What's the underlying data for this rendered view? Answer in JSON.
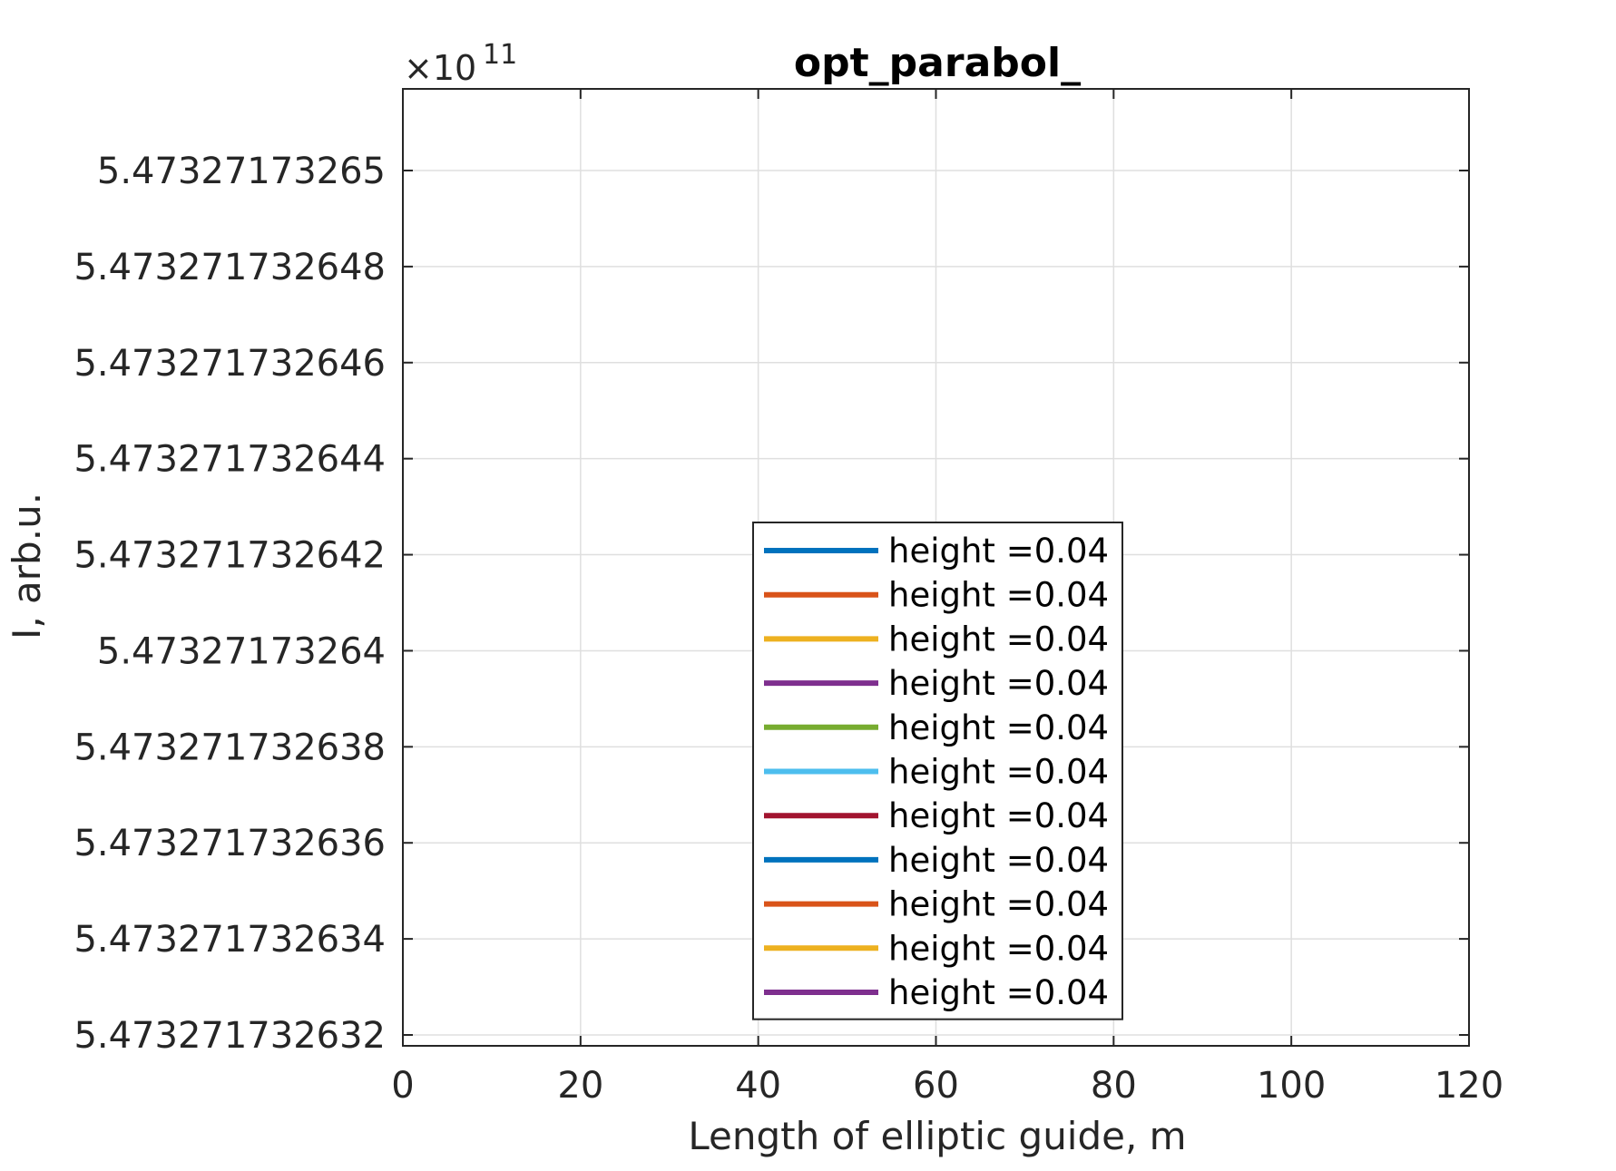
{
  "chart_data": {
    "type": "line",
    "title": "opt_parabol_",
    "xlabel": "Length of elliptic guide, m",
    "ylabel": "I, arb.u.",
    "y_exponent_label": "×10",
    "y_exponent": "11",
    "xlim": [
      0,
      120
    ],
    "x_ticks": [
      "0",
      "20",
      "40",
      "60",
      "80",
      "100",
      "120"
    ],
    "y_ticks": [
      "5.473271732632",
      "5.473271732634",
      "5.473271732636",
      "5.473271732638",
      "5.47327173264",
      "5.473271732642",
      "5.473271732644",
      "5.473271732646",
      "5.473271732648",
      "5.47327173265"
    ],
    "grid": true,
    "legend_position": "bottom-center",
    "series": [
      {
        "name": "height =0.04",
        "color": "#0072BD",
        "values": []
      },
      {
        "name": "height =0.04",
        "color": "#D95319",
        "values": []
      },
      {
        "name": "height =0.04",
        "color": "#EDB120",
        "values": []
      },
      {
        "name": "height =0.04",
        "color": "#7E2F8E",
        "values": []
      },
      {
        "name": "height =0.04",
        "color": "#77AC30",
        "values": []
      },
      {
        "name": "height =0.04",
        "color": "#4DBEEE",
        "values": []
      },
      {
        "name": "height =0.04",
        "color": "#A2142F",
        "values": []
      },
      {
        "name": "height =0.04",
        "color": "#0072BD",
        "values": []
      },
      {
        "name": "height =0.04",
        "color": "#D95319",
        "values": []
      },
      {
        "name": "height =0.04",
        "color": "#EDB120",
        "values": []
      },
      {
        "name": "height =0.04",
        "color": "#7E2F8E",
        "values": []
      }
    ]
  }
}
